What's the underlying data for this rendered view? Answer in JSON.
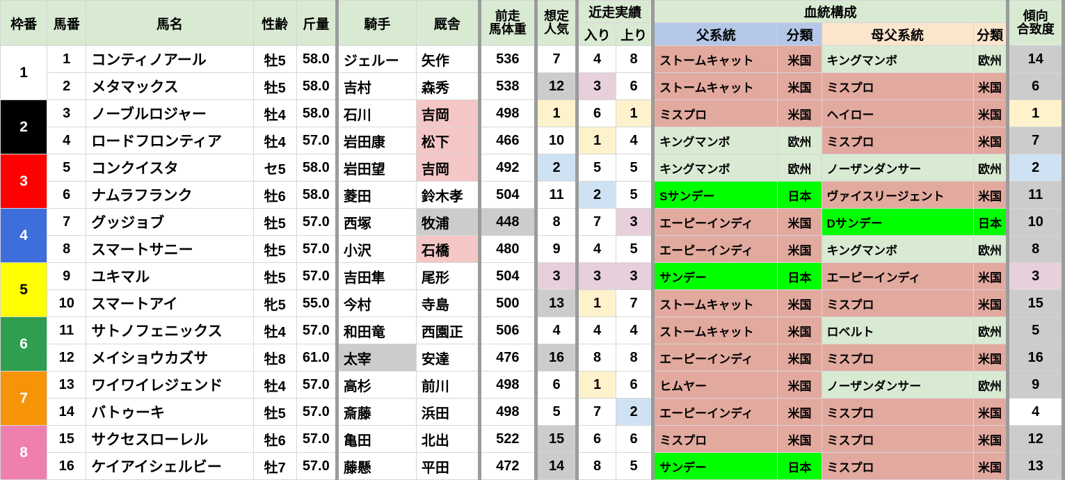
{
  "header": {
    "frame": "枠番",
    "horse_no": "馬番",
    "horse_name": "馬名",
    "sex_age": "性齢",
    "weight": "斤量",
    "jockey": "騎手",
    "stable": "厩舎",
    "prev_body_weight": "前走\n馬体重",
    "expected_popularity": "想定\n人気",
    "recent_results": "近走実績",
    "entry": "入り",
    "closing": "上り",
    "bloodline": "血統構成",
    "sire_line": "父系統",
    "sire_class": "分類",
    "damsire_line": "母父系統",
    "damsire_class": "分類",
    "tendency_match": "傾向\n合致度"
  },
  "palette": {
    "header_green": "#d9ead3",
    "header_blue": "#b4c7e7",
    "header_peach": "#fce5cd",
    "region_us": "#e2a99e",
    "region_eu": "#d9ead3",
    "region_jp": "#00ff00",
    "highlight_yellow": "#fdf2cc",
    "highlight_gray": "#cccccc",
    "highlight_blue": "#cfe2f3",
    "highlight_pink": "#e7cfdc",
    "stable_pink": "#f4c7c6"
  },
  "frames": [
    {
      "no": "1",
      "color": "#ffffff",
      "text": "#000000"
    },
    {
      "no": "2",
      "color": "#000000",
      "text": "#ffffff"
    },
    {
      "no": "3",
      "color": "#ff0000",
      "text": "#ffffff"
    },
    {
      "no": "4",
      "color": "#3d6edb",
      "text": "#ffffff"
    },
    {
      "no": "5",
      "color": "#ffff00",
      "text": "#000000"
    },
    {
      "no": "6",
      "color": "#2f9e4e",
      "text": "#ffffff"
    },
    {
      "no": "7",
      "color": "#f79307",
      "text": "#ffffff"
    },
    {
      "no": "8",
      "color": "#ee7fae",
      "text": "#ffffff"
    }
  ],
  "horses": [
    {
      "num": "1",
      "name": "コンティノアール",
      "sex_age": "牡5",
      "weight": "58.0",
      "jockey": "ジェルー",
      "jockey_hl": "",
      "stable": "矢作",
      "stable_hl": "",
      "prev_weight": "536",
      "prev_hl": "",
      "pop": "7",
      "pop_hl": "",
      "entry": "4",
      "entry_hl": "",
      "closing": "8",
      "closing_hl": "",
      "sire": "ストームキャット",
      "sire_region": "米国",
      "sire_cls": "us",
      "damsire": "キングマンボ",
      "damsire_region": "欧州",
      "damsire_cls": "eu",
      "tendency": "14",
      "tendency_hl": "gray"
    },
    {
      "num": "2",
      "name": "メタマックス",
      "sex_age": "牡5",
      "weight": "58.0",
      "jockey": "吉村",
      "jockey_hl": "",
      "stable": "森秀",
      "stable_hl": "",
      "prev_weight": "538",
      "prev_hl": "",
      "pop": "12",
      "pop_hl": "gray",
      "entry": "3",
      "entry_hl": "pink",
      "closing": "6",
      "closing_hl": "",
      "sire": "ストームキャット",
      "sire_region": "米国",
      "sire_cls": "us",
      "damsire": "ミスプロ",
      "damsire_region": "米国",
      "damsire_cls": "us",
      "tendency": "6",
      "tendency_hl": "gray"
    },
    {
      "num": "3",
      "name": "ノーブルロジャー",
      "sex_age": "牡4",
      "weight": "58.0",
      "jockey": "石川",
      "jockey_hl": "",
      "stable": "吉岡",
      "stable_hl": "stablepink",
      "prev_weight": "498",
      "prev_hl": "",
      "pop": "1",
      "pop_hl": "yellow",
      "entry": "6",
      "entry_hl": "",
      "closing": "1",
      "closing_hl": "yellow",
      "sire": "ミスプロ",
      "sire_region": "米国",
      "sire_cls": "us",
      "damsire": "ヘイロー",
      "damsire_region": "米国",
      "damsire_cls": "us",
      "tendency": "1",
      "tendency_hl": "yellow"
    },
    {
      "num": "4",
      "name": "ロードフロンティア",
      "sex_age": "牡4",
      "weight": "57.0",
      "jockey": "岩田康",
      "jockey_hl": "",
      "stable": "松下",
      "stable_hl": "stablepink",
      "prev_weight": "466",
      "prev_hl": "",
      "pop": "10",
      "pop_hl": "",
      "entry": "1",
      "entry_hl": "yellow",
      "closing": "4",
      "closing_hl": "",
      "sire": "キングマンボ",
      "sire_region": "欧州",
      "sire_cls": "eu",
      "damsire": "ミスプロ",
      "damsire_region": "米国",
      "damsire_cls": "us",
      "tendency": "7",
      "tendency_hl": "gray"
    },
    {
      "num": "5",
      "name": "コンクイスタ",
      "sex_age": "セ5",
      "weight": "58.0",
      "jockey": "岩田望",
      "jockey_hl": "",
      "stable": "吉岡",
      "stable_hl": "stablepink",
      "prev_weight": "492",
      "prev_hl": "",
      "pop": "2",
      "pop_hl": "blue",
      "entry": "5",
      "entry_hl": "",
      "closing": "5",
      "closing_hl": "",
      "sire": "キングマンボ",
      "sire_region": "欧州",
      "sire_cls": "eu",
      "damsire": "ノーザンダンサー",
      "damsire_region": "欧州",
      "damsire_cls": "eu",
      "tendency": "2",
      "tendency_hl": "blue"
    },
    {
      "num": "6",
      "name": "ナムラフランク",
      "sex_age": "牡6",
      "weight": "58.0",
      "jockey": "菱田",
      "jockey_hl": "",
      "stable": "鈴木孝",
      "stable_hl": "",
      "prev_weight": "504",
      "prev_hl": "",
      "pop": "11",
      "pop_hl": "",
      "entry": "2",
      "entry_hl": "blue",
      "closing": "5",
      "closing_hl": "",
      "sire": "Sサンデー",
      "sire_region": "日本",
      "sire_cls": "jp",
      "damsire": "ヴァイスリージェント",
      "damsire_region": "米国",
      "damsire_cls": "us",
      "tendency": "11",
      "tendency_hl": "gray"
    },
    {
      "num": "7",
      "name": "グッジョブ",
      "sex_age": "牡5",
      "weight": "57.0",
      "jockey": "西塚",
      "jockey_hl": "",
      "stable": "牧浦",
      "stable_hl": "gray",
      "prev_weight": "448",
      "prev_hl": "gray",
      "pop": "8",
      "pop_hl": "",
      "entry": "7",
      "entry_hl": "",
      "closing": "3",
      "closing_hl": "pink",
      "sire": "エーピーインディ",
      "sire_region": "米国",
      "sire_cls": "us",
      "damsire": "Dサンデー",
      "damsire_region": "日本",
      "damsire_cls": "jp",
      "tendency": "10",
      "tendency_hl": "gray"
    },
    {
      "num": "8",
      "name": "スマートサニー",
      "sex_age": "牡5",
      "weight": "57.0",
      "jockey": "小沢",
      "jockey_hl": "",
      "stable": "石橋",
      "stable_hl": "stablepink",
      "prev_weight": "480",
      "prev_hl": "",
      "pop": "9",
      "pop_hl": "",
      "entry": "4",
      "entry_hl": "",
      "closing": "5",
      "closing_hl": "",
      "sire": "エーピーインディ",
      "sire_region": "米国",
      "sire_cls": "us",
      "damsire": "キングマンボ",
      "damsire_region": "欧州",
      "damsire_cls": "eu",
      "tendency": "8",
      "tendency_hl": "gray"
    },
    {
      "num": "9",
      "name": "ユキマル",
      "sex_age": "牡5",
      "weight": "57.0",
      "jockey": "吉田隼",
      "jockey_hl": "",
      "stable": "尾形",
      "stable_hl": "",
      "prev_weight": "504",
      "prev_hl": "",
      "pop": "3",
      "pop_hl": "pink",
      "entry": "3",
      "entry_hl": "pink",
      "closing": "3",
      "closing_hl": "pink",
      "sire": "サンデー",
      "sire_region": "日本",
      "sire_cls": "jp",
      "damsire": "エーピーインディ",
      "damsire_region": "米国",
      "damsire_cls": "us",
      "tendency": "3",
      "tendency_hl": "pink"
    },
    {
      "num": "10",
      "name": "スマートアイ",
      "sex_age": "牝5",
      "weight": "55.0",
      "jockey": "今村",
      "jockey_hl": "",
      "stable": "寺島",
      "stable_hl": "",
      "prev_weight": "500",
      "prev_hl": "",
      "pop": "13",
      "pop_hl": "gray",
      "entry": "1",
      "entry_hl": "yellow",
      "closing": "7",
      "closing_hl": "",
      "sire": "ストームキャット",
      "sire_region": "米国",
      "sire_cls": "us",
      "damsire": "ミスプロ",
      "damsire_region": "米国",
      "damsire_cls": "us",
      "tendency": "15",
      "tendency_hl": "gray"
    },
    {
      "num": "11",
      "name": "サトノフェニックス",
      "sex_age": "牡4",
      "weight": "57.0",
      "jockey": "和田竜",
      "jockey_hl": "",
      "stable": "西園正",
      "stable_hl": "",
      "prev_weight": "506",
      "prev_hl": "",
      "pop": "4",
      "pop_hl": "",
      "entry": "4",
      "entry_hl": "",
      "closing": "4",
      "closing_hl": "",
      "sire": "ストームキャット",
      "sire_region": "米国",
      "sire_cls": "us",
      "damsire": "ロベルト",
      "damsire_region": "欧州",
      "damsire_cls": "eu",
      "tendency": "5",
      "tendency_hl": "gray"
    },
    {
      "num": "12",
      "name": "メイショウカズサ",
      "sex_age": "牡8",
      "weight": "61.0",
      "jockey": "太宰",
      "jockey_hl": "gray",
      "stable": "安達",
      "stable_hl": "",
      "prev_weight": "476",
      "prev_hl": "",
      "pop": "16",
      "pop_hl": "gray",
      "entry": "8",
      "entry_hl": "",
      "closing": "8",
      "closing_hl": "",
      "sire": "エーピーインディ",
      "sire_region": "米国",
      "sire_cls": "us",
      "damsire": "ミスプロ",
      "damsire_region": "米国",
      "damsire_cls": "us",
      "tendency": "16",
      "tendency_hl": "gray"
    },
    {
      "num": "13",
      "name": "ワイワイレジェンド",
      "sex_age": "牡4",
      "weight": "57.0",
      "jockey": "高杉",
      "jockey_hl": "",
      "stable": "前川",
      "stable_hl": "",
      "prev_weight": "498",
      "prev_hl": "",
      "pop": "6",
      "pop_hl": "",
      "entry": "1",
      "entry_hl": "yellow",
      "closing": "6",
      "closing_hl": "",
      "sire": "ヒムヤー",
      "sire_region": "米国",
      "sire_cls": "us",
      "damsire": "ノーザンダンサー",
      "damsire_region": "欧州",
      "damsire_cls": "eu",
      "tendency": "9",
      "tendency_hl": "gray"
    },
    {
      "num": "14",
      "name": "バトゥーキ",
      "sex_age": "牡5",
      "weight": "57.0",
      "jockey": "斎藤",
      "jockey_hl": "",
      "stable": "浜田",
      "stable_hl": "",
      "prev_weight": "498",
      "prev_hl": "",
      "pop": "5",
      "pop_hl": "",
      "entry": "7",
      "entry_hl": "",
      "closing": "2",
      "closing_hl": "blue",
      "sire": "エーピーインディ",
      "sire_region": "米国",
      "sire_cls": "us",
      "damsire": "ミスプロ",
      "damsire_region": "米国",
      "damsire_cls": "us",
      "tendency": "4",
      "tendency_hl": ""
    },
    {
      "num": "15",
      "name": "サクセスローレル",
      "sex_age": "牡6",
      "weight": "57.0",
      "jockey": "亀田",
      "jockey_hl": "",
      "stable": "北出",
      "stable_hl": "",
      "prev_weight": "522",
      "prev_hl": "",
      "pop": "15",
      "pop_hl": "gray",
      "entry": "6",
      "entry_hl": "",
      "closing": "6",
      "closing_hl": "",
      "sire": "ミスプロ",
      "sire_region": "米国",
      "sire_cls": "us",
      "damsire": "ミスプロ",
      "damsire_region": "米国",
      "damsire_cls": "us",
      "tendency": "12",
      "tendency_hl": "gray"
    },
    {
      "num": "16",
      "name": "ケイアイシェルビー",
      "sex_age": "牡7",
      "weight": "57.0",
      "jockey": "藤懸",
      "jockey_hl": "",
      "stable": "平田",
      "stable_hl": "",
      "prev_weight": "472",
      "prev_hl": "",
      "pop": "14",
      "pop_hl": "gray",
      "entry": "8",
      "entry_hl": "",
      "closing": "5",
      "closing_hl": "",
      "sire": "サンデー",
      "sire_region": "日本",
      "sire_cls": "jp",
      "damsire": "ミスプロ",
      "damsire_region": "米国",
      "damsire_cls": "us",
      "tendency": "13",
      "tendency_hl": "gray"
    }
  ]
}
